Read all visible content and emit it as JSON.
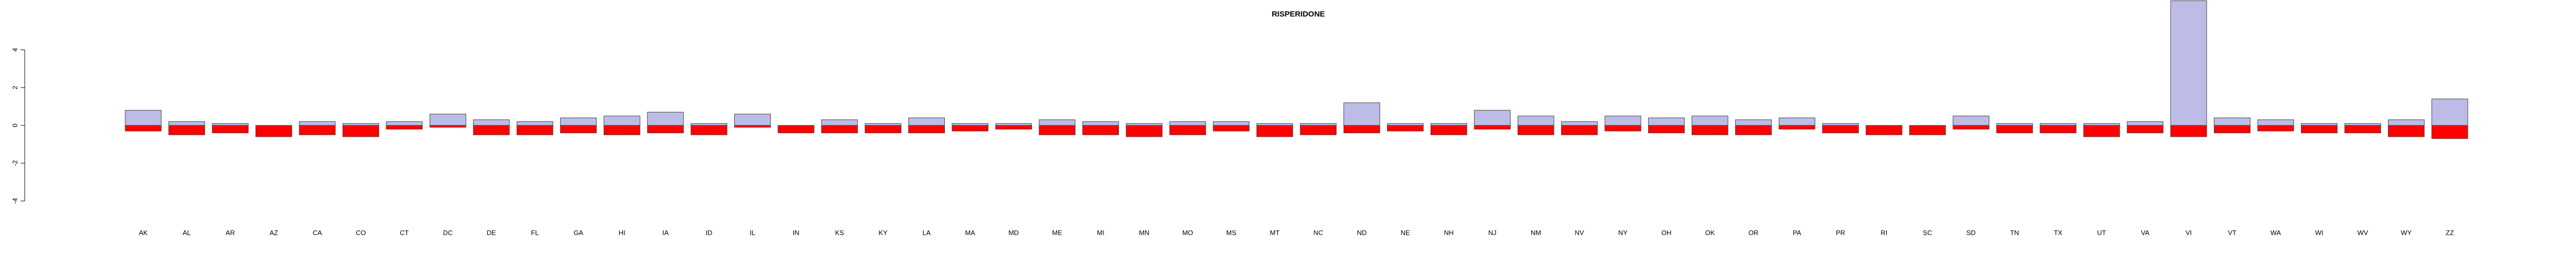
{
  "chart_data": {
    "type": "bar",
    "title": "RISPERIDONE",
    "categories": [
      "AK",
      "AL",
      "AR",
      "AZ",
      "CA",
      "CO",
      "CT",
      "DC",
      "DE",
      "FL",
      "GA",
      "HI",
      "IA",
      "ID",
      "IL",
      "IN",
      "KS",
      "KY",
      "LA",
      "MA",
      "MD",
      "ME",
      "MI",
      "MN",
      "MO",
      "MS",
      "MT",
      "NC",
      "ND",
      "NE",
      "NH",
      "NJ",
      "NM",
      "NV",
      "NY",
      "OH",
      "OK",
      "OR",
      "PA",
      "PR",
      "RI",
      "SC",
      "SD",
      "TN",
      "TX",
      "UT",
      "VA",
      "VI",
      "VT",
      "WA",
      "WI",
      "WV",
      "WY",
      "ZZ"
    ],
    "series": [
      {
        "color": "#bcbce6",
        "values": [
          0.8,
          0.2,
          0.1,
          0,
          0.2,
          0.1,
          0.2,
          0.6,
          0.3,
          0.2,
          0.4,
          0.5,
          0.7,
          0.1,
          0.6,
          0,
          0.3,
          0.1,
          0.4,
          0.1,
          0.1,
          0.3,
          0.2,
          0.1,
          0.2,
          0.2,
          0.1,
          0.1,
          1.2,
          0.1,
          0.1,
          0.8,
          0.5,
          0.2,
          0.5,
          0.4,
          0.5,
          0.3,
          0.4,
          0.1,
          0,
          0,
          0.5,
          0.1,
          0.1,
          0.1,
          0.2,
          6.6,
          0.4,
          0.3,
          0.1,
          0.1,
          0.3,
          1.4
        ]
      },
      {
        "color": "#ff0000",
        "values": [
          -0.3,
          -0.5,
          -0.4,
          -0.6,
          -0.5,
          -0.6,
          -0.2,
          -0.1,
          -0.5,
          -0.5,
          -0.4,
          -0.5,
          -0.4,
          -0.5,
          -0.1,
          -0.4,
          -0.4,
          -0.4,
          -0.4,
          -0.3,
          -0.2,
          -0.5,
          -0.5,
          -0.6,
          -0.5,
          -0.3,
          -0.6,
          -0.5,
          -0.4,
          -0.3,
          -0.5,
          -0.2,
          -0.5,
          -0.5,
          -0.3,
          -0.4,
          -0.5,
          -0.5,
          -0.2,
          -0.4,
          -0.5,
          -0.5,
          -0.2,
          -0.4,
          -0.4,
          -0.6,
          -0.4,
          -0.6,
          -0.4,
          -0.3,
          -0.4,
          -0.4,
          -0.6,
          -0.7
        ]
      }
    ],
    "ylim": [
      -6.5,
      6.5
    ],
    "yticks": [
      -4,
      -2,
      0,
      2,
      4
    ]
  }
}
